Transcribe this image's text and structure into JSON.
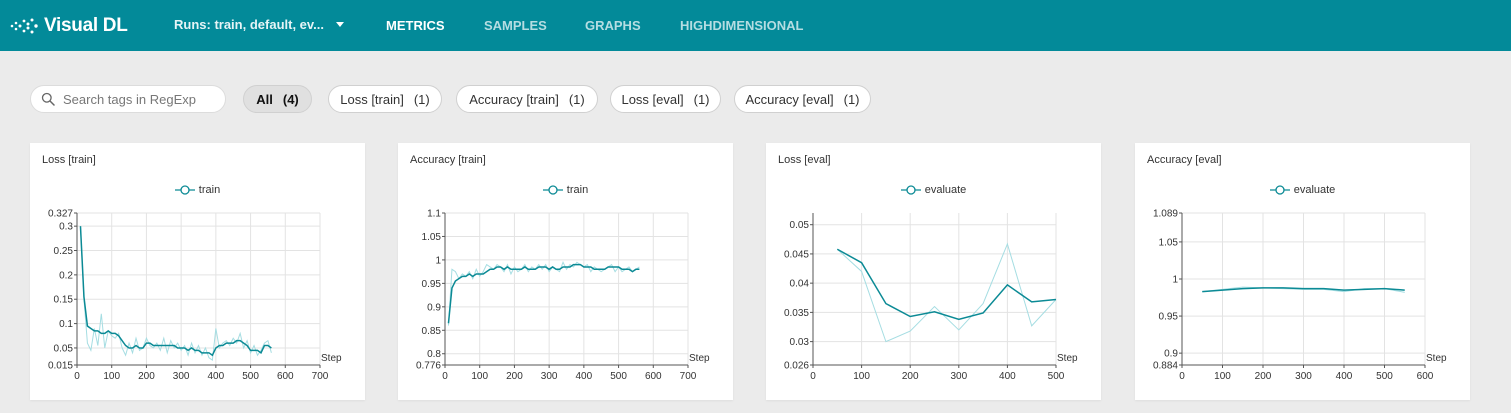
{
  "app": {
    "name": "Visual DL"
  },
  "runs_selector": {
    "label": "Runs: train, default, ev..."
  },
  "nav": {
    "metrics": "METRICS",
    "samples": "SAMPLES",
    "graphs": "GRAPHS",
    "highdimensional": "HIGHDIMENSIONAL",
    "active": "metrics"
  },
  "search": {
    "placeholder": "Search tags in RegExp"
  },
  "tags": [
    {
      "label": "All",
      "count": "(4)",
      "active": true
    },
    {
      "label": "Loss [train]",
      "count": "(1)"
    },
    {
      "label": "Accuracy [train]",
      "count": "(1)"
    },
    {
      "label": "Loss [eval]",
      "count": "(1)"
    },
    {
      "label": "Accuracy [eval]",
      "count": "(1)"
    }
  ],
  "colors": {
    "brand": "#038a99",
    "series_raw": "#a5dde2",
    "series_smooth": "#0b8a95"
  },
  "chart_data": [
    {
      "type": "line",
      "title": "Loss [train]",
      "xlabel": "Step",
      "xlim": [
        0,
        700
      ],
      "ylim": [
        0.015,
        0.327
      ],
      "xticks": [
        "0",
        "100",
        "200",
        "300",
        "400",
        "500",
        "600",
        "700"
      ],
      "xtick_values": [
        0,
        100,
        200,
        300,
        400,
        500,
        600,
        700
      ],
      "yticks": [
        "0.015",
        "0.05",
        "0.1",
        "0.15",
        "0.2",
        "0.25",
        "0.3",
        "0.327"
      ],
      "ytick_values": [
        0.015,
        0.05,
        0.1,
        0.15,
        0.2,
        0.25,
        0.3,
        0.327
      ],
      "series": [
        {
          "name": "train",
          "x": [
            10,
            20,
            30,
            40,
            50,
            60,
            70,
            80,
            90,
            100,
            110,
            120,
            130,
            140,
            150,
            160,
            170,
            180,
            190,
            200,
            210,
            220,
            230,
            240,
            250,
            260,
            270,
            280,
            290,
            300,
            310,
            320,
            330,
            340,
            350,
            360,
            370,
            380,
            390,
            400,
            410,
            420,
            430,
            440,
            450,
            460,
            470,
            480,
            490,
            500,
            510,
            520,
            530,
            540,
            550,
            560
          ],
          "y": [
            0.3,
            0.15,
            0.06,
            0.045,
            0.09,
            0.055,
            0.12,
            0.05,
            0.085,
            0.075,
            0.07,
            0.08,
            0.05,
            0.035,
            0.06,
            0.04,
            0.07,
            0.045,
            0.05,
            0.07,
            0.055,
            0.05,
            0.06,
            0.045,
            0.07,
            0.04,
            0.065,
            0.05,
            0.06,
            0.045,
            0.055,
            0.035,
            0.06,
            0.04,
            0.055,
            0.035,
            0.05,
            0.03,
            0.025,
            0.09,
            0.05,
            0.06,
            0.065,
            0.055,
            0.07,
            0.06,
            0.08,
            0.05,
            0.065,
            0.04,
            0.055,
            0.035,
            0.045,
            0.06,
            0.065,
            0.04
          ],
          "smoothed": [
            0.3,
            0.155,
            0.095,
            0.09,
            0.085,
            0.085,
            0.08,
            0.08,
            0.085,
            0.08,
            0.08,
            0.075,
            0.065,
            0.055,
            0.05,
            0.05,
            0.055,
            0.05,
            0.05,
            0.06,
            0.06,
            0.055,
            0.055,
            0.055,
            0.055,
            0.055,
            0.055,
            0.055,
            0.05,
            0.05,
            0.05,
            0.045,
            0.05,
            0.045,
            0.045,
            0.04,
            0.04,
            0.04,
            0.035,
            0.05,
            0.055,
            0.055,
            0.06,
            0.06,
            0.06,
            0.065,
            0.065,
            0.06,
            0.055,
            0.045,
            0.045,
            0.045,
            0.04,
            0.055,
            0.055,
            0.05
          ]
        }
      ]
    },
    {
      "type": "line",
      "title": "Accuracy [train]",
      "xlabel": "Step",
      "xlim": [
        0,
        700
      ],
      "ylim": [
        0.776,
        1.1
      ],
      "xticks": [
        "0",
        "100",
        "200",
        "300",
        "400",
        "500",
        "600",
        "700"
      ],
      "xtick_values": [
        0,
        100,
        200,
        300,
        400,
        500,
        600,
        700
      ],
      "yticks": [
        "0.776",
        "0.8",
        "0.85",
        "0.9",
        "0.95",
        "1",
        "1.05",
        "1.1"
      ],
      "ytick_values": [
        0.776,
        0.8,
        0.85,
        0.9,
        0.95,
        1.0,
        1.05,
        1.1
      ],
      "series": [
        {
          "name": "train",
          "x": [
            10,
            20,
            30,
            40,
            50,
            60,
            70,
            80,
            90,
            100,
            110,
            120,
            130,
            140,
            150,
            160,
            170,
            180,
            190,
            200,
            210,
            220,
            230,
            240,
            250,
            260,
            270,
            280,
            290,
            300,
            310,
            320,
            330,
            340,
            350,
            360,
            370,
            380,
            390,
            400,
            410,
            420,
            430,
            440,
            450,
            460,
            470,
            480,
            490,
            500,
            510,
            520,
            530,
            540,
            550,
            560
          ],
          "y": [
            0.86,
            0.98,
            0.975,
            0.96,
            0.97,
            0.965,
            0.975,
            0.96,
            0.98,
            0.965,
            0.975,
            0.99,
            0.985,
            0.98,
            0.99,
            0.985,
            0.975,
            0.99,
            0.97,
            0.985,
            0.975,
            0.98,
            0.99,
            0.975,
            0.985,
            0.98,
            0.99,
            0.98,
            0.99,
            0.975,
            0.985,
            0.98,
            0.975,
            0.995,
            0.98,
            0.99,
            0.985,
            0.995,
            0.99,
            0.985,
            0.99,
            0.975,
            0.985,
            0.98,
            0.975,
            0.98,
            0.985,
            0.99,
            0.975,
            0.985,
            0.975,
            0.98,
            0.985,
            0.975,
            0.98,
            0.985
          ],
          "smoothed": [
            0.865,
            0.94,
            0.955,
            0.96,
            0.965,
            0.965,
            0.97,
            0.965,
            0.97,
            0.97,
            0.97,
            0.975,
            0.98,
            0.98,
            0.985,
            0.985,
            0.98,
            0.985,
            0.98,
            0.98,
            0.98,
            0.98,
            0.985,
            0.98,
            0.98,
            0.98,
            0.985,
            0.985,
            0.985,
            0.98,
            0.985,
            0.98,
            0.98,
            0.985,
            0.985,
            0.985,
            0.99,
            0.99,
            0.99,
            0.985,
            0.985,
            0.985,
            0.98,
            0.98,
            0.98,
            0.98,
            0.985,
            0.985,
            0.985,
            0.985,
            0.98,
            0.98,
            0.98,
            0.975,
            0.98,
            0.98
          ]
        }
      ]
    },
    {
      "type": "line",
      "title": "Loss [eval]",
      "xlabel": "Step",
      "xlim": [
        0,
        500
      ],
      "ylim": [
        0.026,
        0.052
      ],
      "xticks": [
        "0",
        "100",
        "200",
        "300",
        "400",
        "500"
      ],
      "xtick_values": [
        0,
        100,
        200,
        300,
        400,
        500
      ],
      "yticks": [
        "0.026",
        "0.03",
        "0.035",
        "0.04",
        "0.045",
        "0.05"
      ],
      "ytick_values": [
        0.026,
        0.03,
        0.035,
        0.04,
        0.045,
        0.05
      ],
      "series": [
        {
          "name": "evaluate",
          "x": [
            50,
            100,
            150,
            200,
            250,
            300,
            350,
            400,
            450,
            500
          ],
          "y": [
            0.0458,
            0.042,
            0.03,
            0.0318,
            0.036,
            0.032,
            0.0365,
            0.0467,
            0.0327,
            0.0372
          ],
          "smoothed": [
            0.0458,
            0.0435,
            0.0365,
            0.0343,
            0.0351,
            0.0338,
            0.0349,
            0.0397,
            0.0368,
            0.0372
          ]
        }
      ]
    },
    {
      "type": "line",
      "title": "Accuracy [eval]",
      "xlabel": "Step",
      "xlim": [
        0,
        600
      ],
      "ylim": [
        0.884,
        1.089
      ],
      "xticks": [
        "0",
        "100",
        "200",
        "300",
        "400",
        "500",
        "600"
      ],
      "xtick_values": [
        0,
        100,
        200,
        300,
        400,
        500,
        600
      ],
      "yticks": [
        "0.884",
        "0.9",
        "0.95",
        "1",
        "1.05",
        "1.089"
      ],
      "ytick_values": [
        0.884,
        0.9,
        0.95,
        1.0,
        1.05,
        1.089
      ],
      "series": [
        {
          "name": "evaluate",
          "x": [
            50,
            100,
            150,
            200,
            250,
            300,
            350,
            400,
            450,
            500,
            550
          ],
          "y": [
            0.983,
            0.986,
            0.989,
            0.988,
            0.987,
            0.986,
            0.986,
            0.983,
            0.987,
            0.987,
            0.982
          ],
          "smoothed": [
            0.983,
            0.985,
            0.987,
            0.988,
            0.988,
            0.987,
            0.987,
            0.985,
            0.986,
            0.987,
            0.985
          ]
        }
      ]
    }
  ]
}
